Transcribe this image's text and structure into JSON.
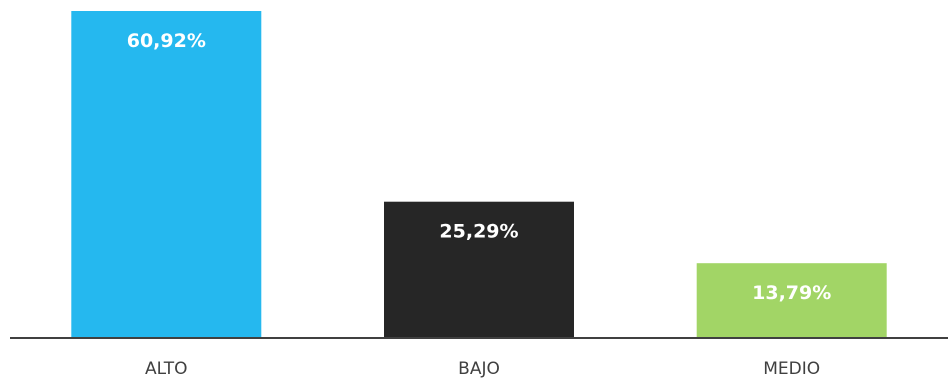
{
  "chart_data": {
    "type": "bar",
    "categories": [
      "ALTO",
      "BAJO",
      "MEDIO"
    ],
    "values": [
      60.92,
      25.29,
      13.79
    ],
    "data_labels": [
      "60,92%",
      "25,29%",
      "13,79%"
    ],
    "colors": [
      "#25b8ef",
      "#262626",
      "#a2d566"
    ],
    "title": "",
    "xlabel": "",
    "ylabel": "",
    "ylim": [
      0,
      60.92
    ],
    "grid": false,
    "legend": "none"
  }
}
